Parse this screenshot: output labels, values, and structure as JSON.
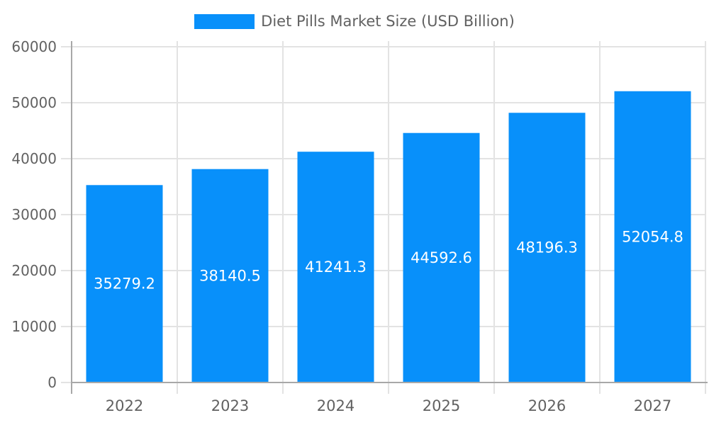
{
  "chart_data": {
    "type": "bar",
    "title": "Diet Pills Market Size (USD Billion)",
    "legend": {
      "position": "top",
      "label": "Diet Pills Market Size (USD Billion)"
    },
    "categories": [
      "2022",
      "2023",
      "2024",
      "2025",
      "2026",
      "2027"
    ],
    "series": [
      {
        "name": "Diet Pills Market Size (USD Billion)",
        "color": "#0890FA",
        "values": [
          35279.2,
          38140.5,
          41241.3,
          44592.6,
          48196.3,
          52054.8
        ]
      }
    ],
    "value_labels": [
      "35279.2",
      "38140.5",
      "41241.3",
      "44592.6",
      "48196.3",
      "52054.8"
    ],
    "xlabel": "",
    "ylabel": "",
    "ylim": [
      0,
      60000
    ],
    "yticks": [
      0,
      10000,
      20000,
      30000,
      40000,
      50000,
      60000
    ],
    "ytick_labels": [
      "0",
      "10000",
      "20000",
      "30000",
      "40000",
      "50000",
      "60000"
    ],
    "grid": true,
    "colors": {
      "bar": "#0890FA",
      "grid": "#e3e3e3",
      "axis": "#a8a8a8",
      "tick_text": "#616161",
      "bar_label_text": "#ffffff",
      "background": "#ffffff"
    }
  }
}
